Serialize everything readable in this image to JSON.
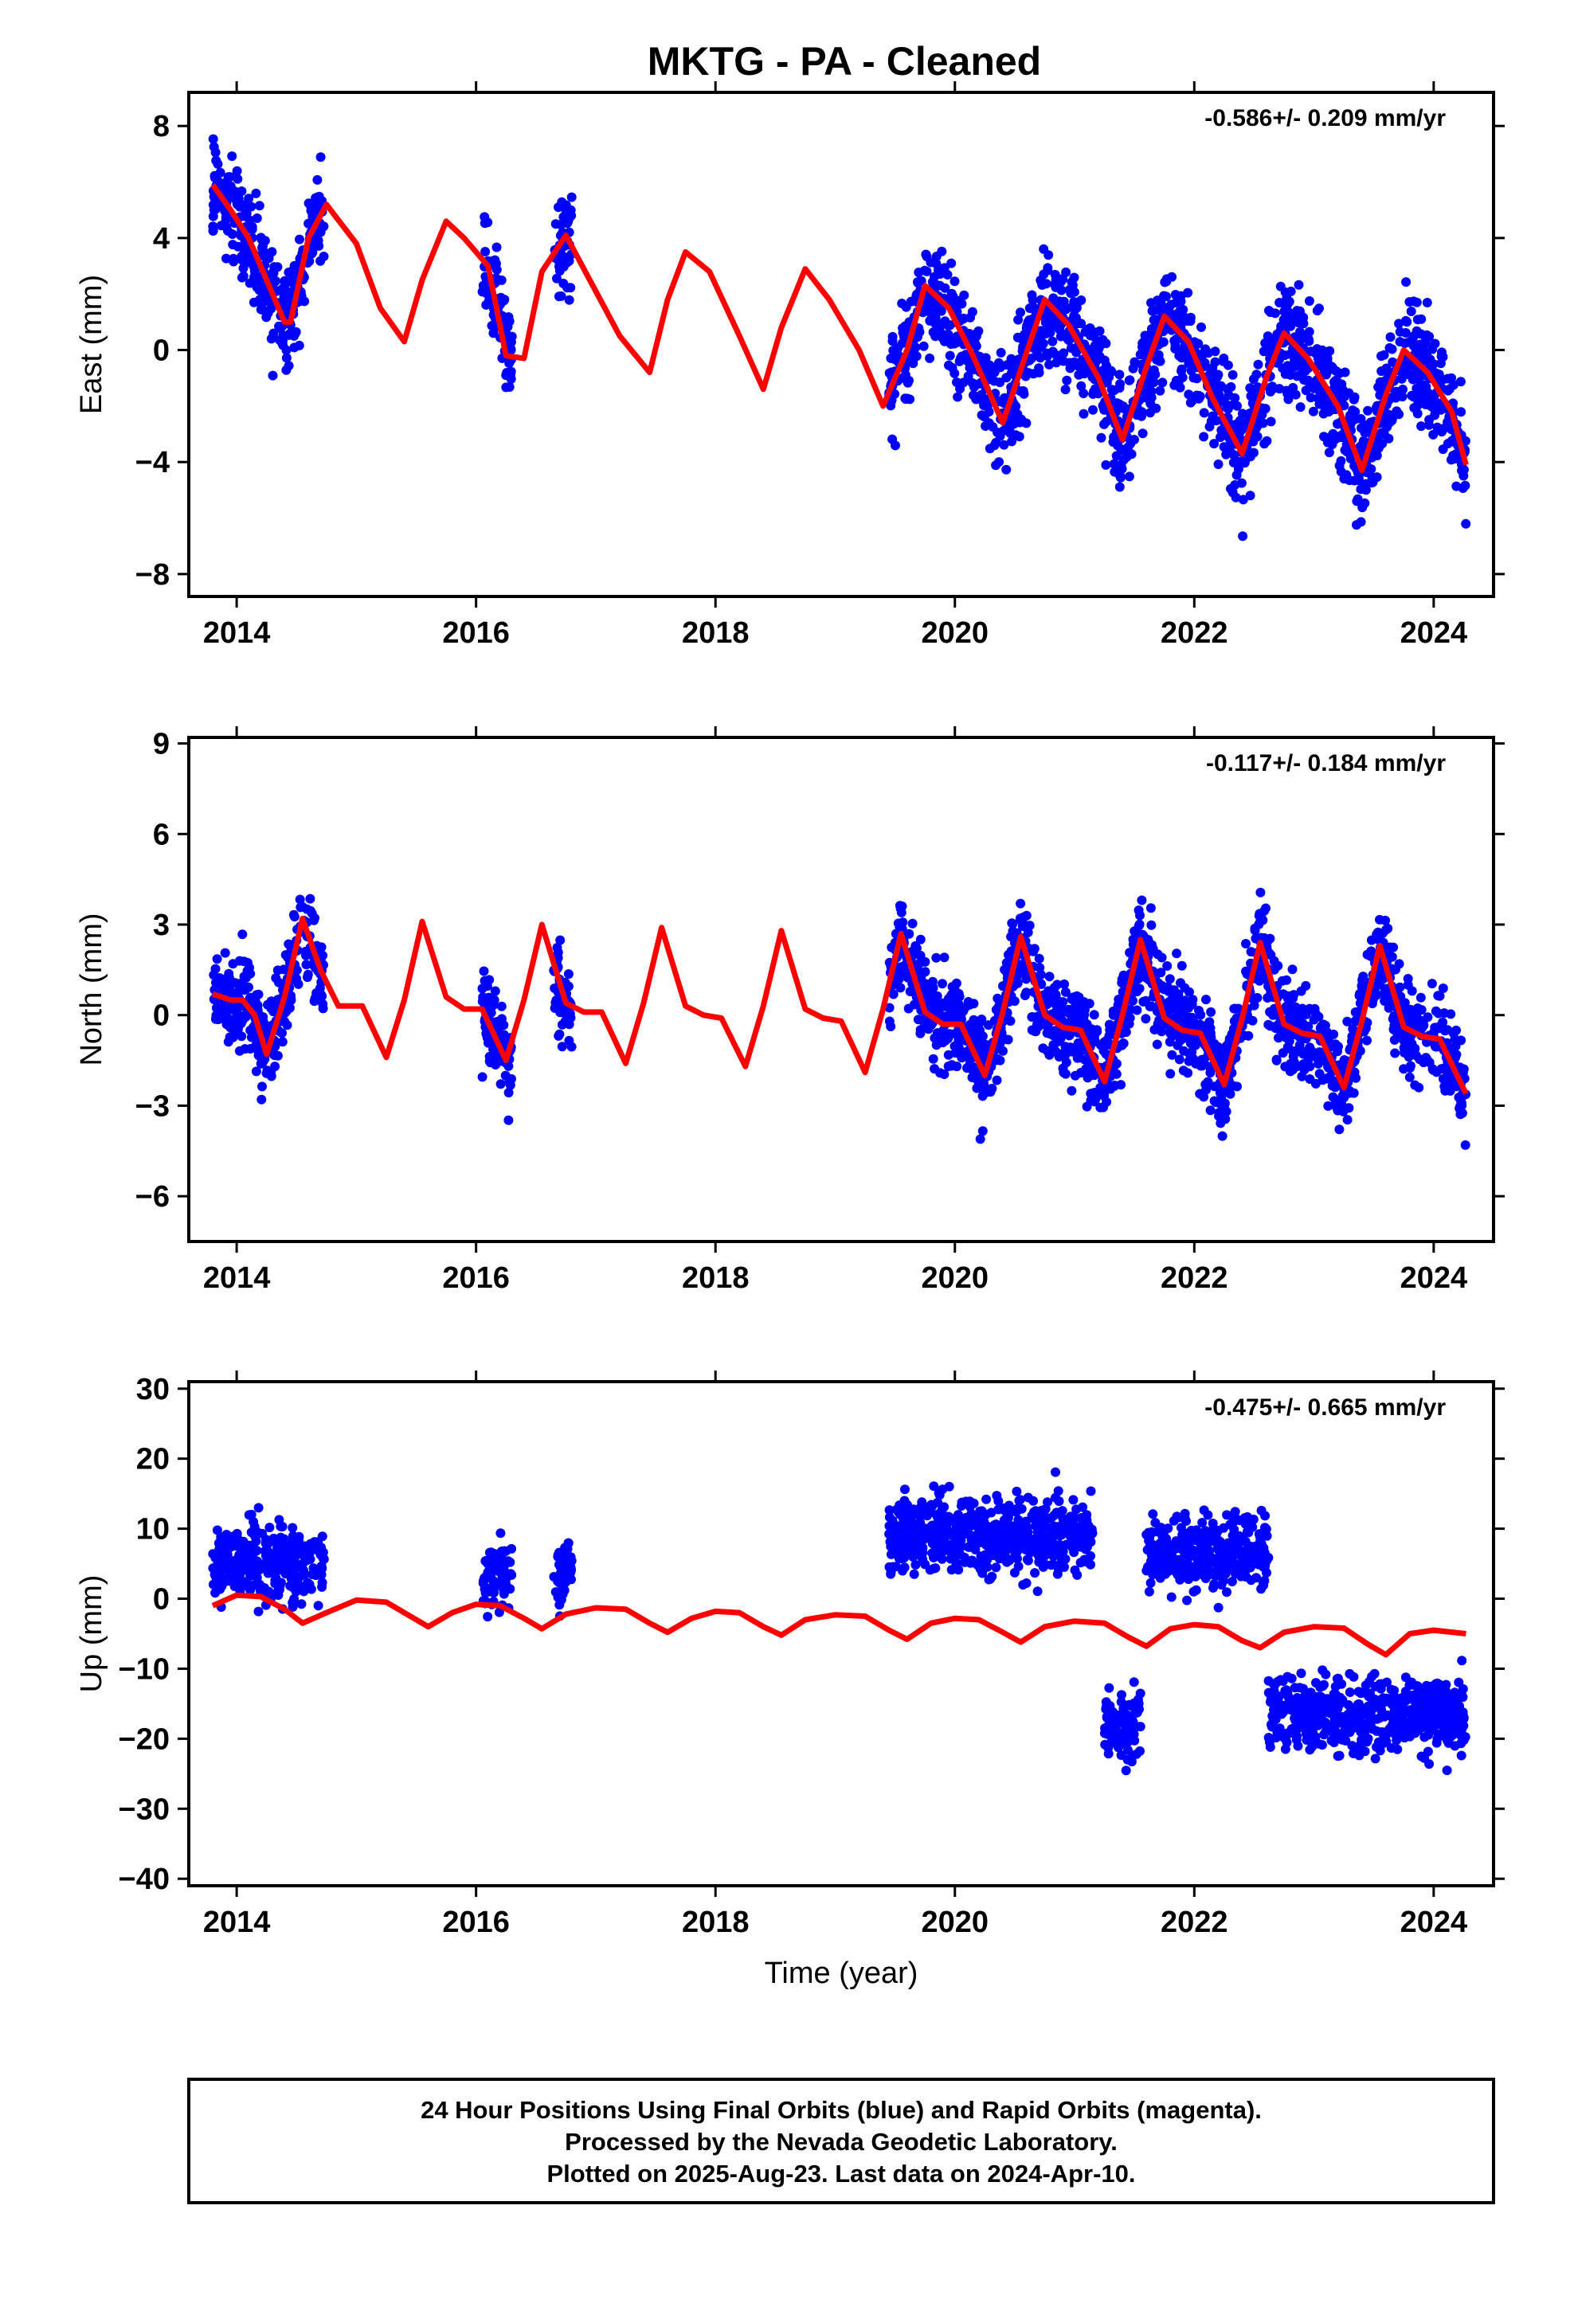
{
  "title": "MKTG  - PA - Cleaned",
  "footer": {
    "line1": "24 Hour Positions Using Final Orbits (blue) and Rapid Orbits (magenta).",
    "line2": "Processed by the Nevada Geodetic Laboratory.",
    "line3": "Plotted on 2025-Aug-23. Last data on 2024-Apr-10."
  },
  "colors": {
    "data_points": "#0000ff",
    "model_curve": "#ff0000",
    "frame": "#000000"
  },
  "chart_data": [
    {
      "type": "scatter",
      "ylabel": "East (mm)",
      "xlabel": "",
      "rate_text": "-0.586+/- 0.209 mm/yr",
      "xlim": [
        2013.6,
        2024.5
      ],
      "ylim": [
        -8.8,
        9.2
      ],
      "xticks": [
        2014,
        2016,
        2018,
        2020,
        2022,
        2024
      ],
      "yticks": [
        -8,
        -4,
        0,
        4,
        8
      ],
      "series": [
        {
          "kind": "points",
          "segments": [
            [
              2013.8,
              2014.73
            ],
            [
              2016.05,
              2016.3
            ],
            [
              2016.65,
              2016.8
            ],
            [
              2019.45,
              2024.27
            ]
          ]
        },
        {
          "kind": "model",
          "x": [
            2013.8,
            2013.95,
            2014.1,
            2014.25,
            2014.4,
            2014.45,
            2014.6,
            2014.75,
            2015.0,
            2015.2,
            2015.4,
            2015.55,
            2015.75,
            2015.9,
            2016.1,
            2016.25,
            2016.4,
            2016.55,
            2016.75,
            2016.95,
            2017.2,
            2017.45,
            2017.6,
            2017.75,
            2017.95,
            2018.2,
            2018.4,
            2018.55,
            2018.75,
            2018.95,
            2019.2,
            2019.4,
            2019.6,
            2019.75,
            2019.95,
            2020.15,
            2020.4,
            2020.55,
            2020.75,
            2020.95,
            2021.2,
            2021.4,
            2021.6,
            2021.75,
            2021.95,
            2022.15,
            2022.4,
            2022.6,
            2022.75,
            2022.95,
            2023.2,
            2023.4,
            2023.6,
            2023.75,
            2023.95,
            2024.15,
            2024.27
          ],
          "y": [
            5.9,
            5.0,
            4.0,
            2.5,
            1.0,
            1.0,
            4.0,
            5.2,
            3.8,
            1.5,
            0.3,
            2.5,
            4.6,
            4.0,
            3.0,
            -0.2,
            -0.3,
            2.8,
            4.1,
            2.5,
            0.5,
            -0.8,
            1.8,
            3.5,
            2.8,
            0.5,
            -1.4,
            0.8,
            2.9,
            1.8,
            0.0,
            -2.0,
            0.0,
            2.3,
            1.5,
            -0.2,
            -2.6,
            -0.7,
            1.8,
            0.9,
            -1.0,
            -3.2,
            -0.6,
            1.2,
            0.3,
            -1.7,
            -3.7,
            -1.0,
            0.6,
            -0.3,
            -2.0,
            -4.3,
            -1.6,
            0.0,
            -0.8,
            -2.2,
            -4.1
          ]
        }
      ]
    },
    {
      "type": "scatter",
      "ylabel": "North (mm)",
      "xlabel": "",
      "rate_text": "-0.117+/- 0.184 mm/yr",
      "xlim": [
        2013.6,
        2024.5
      ],
      "ylim": [
        -7.5,
        9.2
      ],
      "xticks": [
        2014,
        2016,
        2018,
        2020,
        2022,
        2024
      ],
      "yticks": [
        -6,
        -3,
        0,
        3,
        6,
        9
      ],
      "series": [
        {
          "kind": "points",
          "segments": [
            [
              2013.8,
              2014.73
            ],
            [
              2016.05,
              2016.3
            ],
            [
              2016.65,
              2016.8
            ],
            [
              2019.45,
              2024.27
            ]
          ]
        },
        {
          "kind": "model",
          "x": [
            2013.8,
            2013.95,
            2014.05,
            2014.15,
            2014.25,
            2014.4,
            2014.55,
            2014.7,
            2014.85,
            2015.05,
            2015.25,
            2015.4,
            2015.55,
            2015.75,
            2015.9,
            2016.05,
            2016.25,
            2016.4,
            2016.55,
            2016.75,
            2016.9,
            2017.05,
            2017.25,
            2017.4,
            2017.55,
            2017.75,
            2017.9,
            2018.05,
            2018.25,
            2018.4,
            2018.55,
            2018.75,
            2018.9,
            2019.05,
            2019.25,
            2019.4,
            2019.55,
            2019.75,
            2019.9,
            2020.05,
            2020.25,
            2020.4,
            2020.55,
            2020.75,
            2020.9,
            2021.05,
            2021.25,
            2021.4,
            2021.55,
            2021.75,
            2021.9,
            2022.05,
            2022.25,
            2022.4,
            2022.55,
            2022.75,
            2022.9,
            2023.05,
            2023.25,
            2023.4,
            2023.55,
            2023.75,
            2023.9,
            2024.05,
            2024.27
          ],
          "y": [
            0.7,
            0.5,
            0.5,
            0.0,
            -1.3,
            0.6,
            3.2,
            1.5,
            0.3,
            0.3,
            -1.4,
            0.5,
            3.1,
            0.6,
            0.2,
            0.2,
            -1.5,
            0.5,
            3.0,
            0.4,
            0.1,
            0.1,
            -1.6,
            0.4,
            2.9,
            0.3,
            0.0,
            -0.1,
            -1.7,
            0.3,
            2.8,
            0.2,
            -0.1,
            -0.2,
            -1.9,
            0.2,
            2.7,
            0.1,
            -0.3,
            -0.3,
            -2.0,
            0.1,
            2.6,
            0.0,
            -0.4,
            -0.5,
            -2.2,
            0.0,
            2.5,
            -0.1,
            -0.5,
            -0.6,
            -2.3,
            -0.1,
            2.4,
            -0.3,
            -0.6,
            -0.7,
            -2.4,
            -0.2,
            2.3,
            -0.4,
            -0.7,
            -0.8,
            -2.6
          ]
        }
      ]
    },
    {
      "type": "scatter",
      "ylabel": "Up (mm)",
      "xlabel": "Time (year)",
      "rate_text": "-0.475+/- 0.665 mm/yr",
      "xlim": [
        2013.6,
        2024.5
      ],
      "ylim": [
        -41,
        31
      ],
      "xticks": [
        2014,
        2016,
        2018,
        2020,
        2022,
        2024
      ],
      "yticks": [
        -40,
        -30,
        -20,
        -10,
        0,
        10,
        20,
        30
      ],
      "series": [
        {
          "kind": "points",
          "segments": [
            [
              2013.8,
              2014.73
            ],
            [
              2016.05,
              2016.3
            ],
            [
              2016.65,
              2016.8
            ],
            [
              2019.45,
              2021.15
            ],
            [
              2021.25,
              2021.55
            ],
            [
              2021.6,
              2022.62
            ],
            [
              2022.62,
              2024.27
            ]
          ]
        },
        {
          "kind": "model",
          "x": [
            2013.8,
            2014.0,
            2014.2,
            2014.4,
            2014.55,
            2014.75,
            2015.0,
            2015.25,
            2015.45,
            2015.6,
            2015.8,
            2016.0,
            2016.2,
            2016.4,
            2016.55,
            2016.75,
            2017.0,
            2017.25,
            2017.45,
            2017.6,
            2017.8,
            2018.0,
            2018.2,
            2018.4,
            2018.55,
            2018.75,
            2019.0,
            2019.25,
            2019.45,
            2019.6,
            2019.8,
            2020.0,
            2020.2,
            2020.4,
            2020.55,
            2020.75,
            2021.0,
            2021.25,
            2021.45,
            2021.6,
            2021.8,
            2022.0,
            2022.2,
            2022.4,
            2022.55,
            2022.75,
            2023.0,
            2023.25,
            2023.45,
            2023.6,
            2023.8,
            2024.0,
            2024.27
          ],
          "y": [
            -1.0,
            0.5,
            0.3,
            -1.5,
            -3.5,
            -2.0,
            -0.2,
            -0.5,
            -2.5,
            -4.0,
            -2.0,
            -0.8,
            -1.0,
            -2.8,
            -4.3,
            -2.2,
            -1.3,
            -1.5,
            -3.5,
            -4.8,
            -2.8,
            -1.8,
            -2.0,
            -4.0,
            -5.2,
            -3.0,
            -2.3,
            -2.5,
            -4.5,
            -5.8,
            -3.5,
            -2.8,
            -3.0,
            -4.8,
            -6.2,
            -4.0,
            -3.2,
            -3.5,
            -5.5,
            -6.8,
            -4.3,
            -3.7,
            -4.0,
            -6.0,
            -7.0,
            -4.8,
            -4.0,
            -4.2,
            -6.5,
            -8.0,
            -5.0,
            -4.5,
            -5.0
          ]
        }
      ]
    }
  ]
}
